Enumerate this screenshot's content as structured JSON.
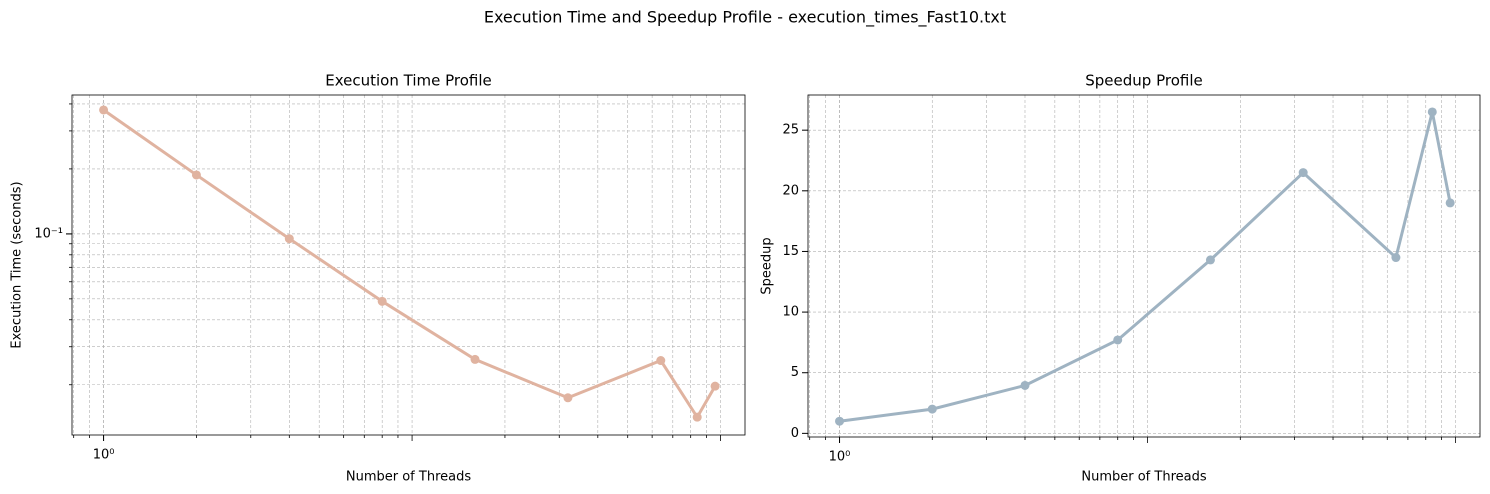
{
  "title": "Execution Time and Speedup Profile - execution_times_Fast10.txt",
  "chart_data": [
    {
      "type": "line",
      "title": "Execution Time Profile",
      "x_label": "Number of Threads",
      "y_label": "Execution Time (seconds)",
      "x": [
        1,
        2,
        4,
        8,
        16,
        32,
        64,
        84,
        96
      ],
      "series": [
        {
          "color": "#e0b3a0",
          "values": [
            0.375,
            0.1875,
            0.095,
            0.0487,
            0.0262,
            0.0174,
            0.0259,
            0.01415,
            0.0197
          ]
        }
      ],
      "xscale": "log",
      "yscale": "log",
      "xlim": [
        0.79,
        120
      ],
      "ylim": [
        0.0117,
        0.44
      ],
      "xticks": [
        {
          "value": 1,
          "label": "10⁰"
        }
      ],
      "yticks": [
        {
          "value": 0.1,
          "label": "10⁻¹"
        }
      ],
      "grid": true,
      "grid_minor": true
    },
    {
      "type": "line",
      "title": "Speedup Profile",
      "x_label": "Number of Threads",
      "y_label": "Speedup",
      "x": [
        1,
        2,
        4,
        8,
        16,
        32,
        64,
        84,
        96
      ],
      "series": [
        {
          "color": "#9fb3c2",
          "values": [
            1,
            2,
            3.95,
            7.7,
            14.3,
            21.5,
            14.5,
            26.5,
            19
          ]
        }
      ],
      "xscale": "log",
      "yscale": "linear",
      "xlim": [
        0.79,
        120
      ],
      "ylim": [
        -0.3,
        27.9
      ],
      "xticks": [
        {
          "value": 1,
          "label": "10⁰"
        }
      ],
      "yticks": [
        0,
        5,
        10,
        15,
        20,
        25
      ],
      "grid": true,
      "grid_minor": true
    }
  ]
}
